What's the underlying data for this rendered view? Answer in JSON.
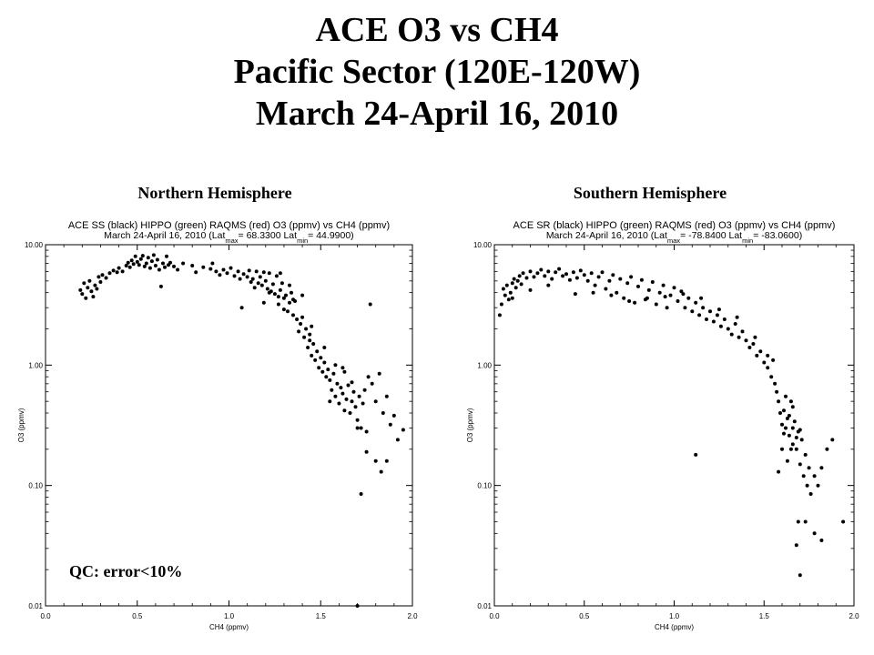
{
  "page": {
    "title_lines": [
      "ACE O3 vs CH4",
      "Pacific Sector (120E-120W)",
      "March 24-April 16, 2010"
    ],
    "qc_note": "QC: error<10%"
  },
  "chart_data": [
    {
      "type": "scatter",
      "panel_label": "Northern Hemisphere",
      "title": "ACE SS (black) HIPPO (green) RAQMS (red) O3 (ppmv) vs CH4 (ppmv)",
      "subtitle": {
        "prefix": "March 24-April 16, 2010 (Lat",
        "max_sub": "max",
        "eq1": "=",
        "lat_max": "68.3300",
        "mid": "Lat",
        "min_sub": "min",
        "eq2": "=",
        "lat_min": "44.9900",
        "close": ")"
      },
      "xlabel": "CH4 (ppmv)",
      "ylabel": "O3 (ppmv)",
      "xlim": [
        0.0,
        2.0
      ],
      "ylim": [
        0.01,
        10.0
      ],
      "yscale": "log",
      "x_ticks": [
        "0.0",
        "0.5",
        "1.0",
        "1.5",
        "2.0"
      ],
      "y_ticks": [
        "0.01",
        "0.10",
        "1.00",
        "10.00"
      ],
      "marker_color": "#000000",
      "points": [
        [
          0.19,
          4.2
        ],
        [
          0.2,
          3.9
        ],
        [
          0.21,
          4.8
        ],
        [
          0.22,
          3.6
        ],
        [
          0.23,
          4.4
        ],
        [
          0.24,
          5.0
        ],
        [
          0.25,
          4.1
        ],
        [
          0.26,
          3.7
        ],
        [
          0.27,
          4.6
        ],
        [
          0.28,
          4.3
        ],
        [
          0.29,
          5.4
        ],
        [
          0.3,
          4.9
        ],
        [
          0.31,
          5.6
        ],
        [
          0.33,
          5.3
        ],
        [
          0.35,
          5.8
        ],
        [
          0.37,
          6.1
        ],
        [
          0.39,
          5.9
        ],
        [
          0.4,
          6.4
        ],
        [
          0.42,
          6.0
        ],
        [
          0.44,
          6.7
        ],
        [
          0.45,
          7.1
        ],
        [
          0.46,
          6.5
        ],
        [
          0.47,
          7.4
        ],
        [
          0.48,
          6.9
        ],
        [
          0.49,
          8.0
        ],
        [
          0.5,
          7.2
        ],
        [
          0.51,
          6.8
        ],
        [
          0.52,
          7.6
        ],
        [
          0.53,
          8.1
        ],
        [
          0.54,
          6.6
        ],
        [
          0.55,
          7.0
        ],
        [
          0.56,
          7.8
        ],
        [
          0.57,
          6.4
        ],
        [
          0.58,
          7.3
        ],
        [
          0.59,
          8.2
        ],
        [
          0.6,
          6.7
        ],
        [
          0.61,
          7.5
        ],
        [
          0.62,
          6.2
        ],
        [
          0.63,
          4.5
        ],
        [
          0.64,
          7.0
        ],
        [
          0.65,
          6.5
        ],
        [
          0.66,
          8.0
        ],
        [
          0.67,
          6.8
        ],
        [
          0.68,
          7.1
        ],
        [
          0.7,
          6.6
        ],
        [
          0.72,
          6.2
        ],
        [
          0.75,
          7.0
        ],
        [
          0.8,
          6.7
        ],
        [
          0.82,
          5.9
        ],
        [
          0.86,
          6.5
        ],
        [
          0.9,
          6.3
        ],
        [
          0.91,
          7.0
        ],
        [
          0.93,
          6.0
        ],
        [
          0.95,
          5.6
        ],
        [
          0.97,
          6.2
        ],
        [
          0.99,
          5.8
        ],
        [
          1.01,
          6.4
        ],
        [
          1.03,
          5.5
        ],
        [
          1.05,
          6.0
        ],
        [
          1.06,
          5.2
        ],
        [
          1.07,
          3.0
        ],
        [
          1.08,
          5.7
        ],
        [
          1.1,
          5.4
        ],
        [
          1.11,
          6.1
        ],
        [
          1.12,
          4.9
        ],
        [
          1.13,
          5.2
        ],
        [
          1.14,
          4.4
        ],
        [
          1.15,
          6.0
        ],
        [
          1.16,
          4.8
        ],
        [
          1.17,
          5.4
        ],
        [
          1.18,
          4.6
        ],
        [
          1.19,
          3.3
        ],
        [
          1.2,
          5.0
        ],
        [
          1.21,
          4.3
        ],
        [
          1.22,
          5.8
        ],
        [
          1.23,
          4.1
        ],
        [
          1.24,
          4.7
        ],
        [
          1.25,
          3.9
        ],
        [
          1.26,
          5.5
        ],
        [
          1.27,
          3.7
        ],
        [
          1.28,
          4.2
        ],
        [
          1.29,
          4.8
        ],
        [
          1.3,
          3.6
        ],
        [
          1.31,
          3.8
        ],
        [
          1.32,
          2.8
        ],
        [
          1.33,
          3.3
        ],
        [
          1.34,
          4.0
        ],
        [
          1.35,
          2.6
        ],
        [
          1.36,
          3.4
        ],
        [
          1.37,
          2.4
        ],
        [
          1.38,
          1.9
        ],
        [
          1.39,
          2.2
        ],
        [
          1.4,
          2.5
        ],
        [
          1.41,
          1.7
        ],
        [
          1.42,
          2.0
        ],
        [
          1.43,
          1.4
        ],
        [
          1.44,
          1.6
        ],
        [
          1.45,
          1.2
        ],
        [
          1.46,
          1.5
        ],
        [
          1.47,
          1.1
        ],
        [
          1.48,
          1.3
        ],
        [
          1.49,
          0.95
        ],
        [
          1.5,
          1.15
        ],
        [
          1.51,
          0.88
        ],
        [
          1.52,
          1.05
        ],
        [
          1.53,
          0.8
        ],
        [
          1.54,
          0.92
        ],
        [
          1.55,
          0.75
        ],
        [
          1.56,
          0.62
        ],
        [
          1.57,
          0.85
        ],
        [
          1.58,
          0.55
        ],
        [
          1.59,
          0.7
        ],
        [
          1.6,
          0.48
        ],
        [
          1.61,
          0.65
        ],
        [
          1.62,
          0.58
        ],
        [
          1.63,
          0.42
        ],
        [
          1.64,
          0.52
        ],
        [
          1.65,
          0.68
        ],
        [
          1.66,
          0.4
        ],
        [
          1.67,
          0.5
        ],
        [
          1.68,
          0.6
        ],
        [
          1.69,
          0.45
        ],
        [
          1.7,
          0.35
        ],
        [
          1.71,
          0.55
        ],
        [
          1.72,
          0.3
        ],
        [
          1.73,
          0.48
        ],
        [
          1.74,
          0.62
        ],
        [
          1.75,
          0.28
        ],
        [
          1.76,
          0.8
        ],
        [
          1.78,
          0.7
        ],
        [
          1.8,
          0.5
        ],
        [
          1.82,
          0.85
        ],
        [
          1.84,
          0.4
        ],
        [
          1.86,
          0.55
        ],
        [
          1.88,
          0.32
        ],
        [
          1.63,
          0.88
        ],
        [
          1.7,
          0.3
        ],
        [
          1.72,
          0.085
        ],
        [
          1.75,
          0.19
        ],
        [
          1.8,
          0.16
        ],
        [
          1.83,
          0.13
        ],
        [
          1.86,
          0.16
        ],
        [
          1.9,
          0.38
        ],
        [
          1.92,
          0.24
        ],
        [
          1.95,
          0.29
        ],
        [
          1.7,
          0.01
        ],
        [
          1.77,
          3.2
        ],
        [
          1.35,
          3.5
        ],
        [
          1.3,
          2.9
        ],
        [
          1.28,
          5.8
        ],
        [
          1.4,
          3.8
        ],
        [
          1.45,
          2.1
        ],
        [
          1.55,
          0.5
        ],
        [
          1.58,
          1.0
        ],
        [
          1.62,
          0.95
        ],
        [
          1.67,
          0.72
        ],
        [
          1.52,
          1.4
        ],
        [
          1.44,
          1.8
        ],
        [
          1.27,
          3.2
        ],
        [
          1.33,
          4.6
        ],
        [
          1.22,
          4.0
        ],
        [
          1.19,
          5.9
        ]
      ]
    },
    {
      "type": "scatter",
      "panel_label": "Southern Hemisphere",
      "title": "ACE SR (black) HIPPO (green) RAQMS (red) O3 (ppmv) vs CH4 (ppmv)",
      "subtitle": {
        "prefix": "March 24-April 16, 2010 (Lat",
        "max_sub": "max",
        "eq1": "=",
        "lat_max": "-78.8400",
        "mid": "Lat",
        "min_sub": "min",
        "eq2": "=",
        "lat_min": "-83.0600",
        "close": ")"
      },
      "xlabel": "CH4 (ppmv)",
      "ylabel": "O3 (ppmv)",
      "xlim": [
        0.0,
        2.0
      ],
      "ylim": [
        0.01,
        10.0
      ],
      "yscale": "log",
      "x_ticks": [
        "0.0",
        "0.5",
        "1.0",
        "1.5",
        "2.0"
      ],
      "y_ticks": [
        "0.01",
        "0.10",
        "1.00",
        "10.00"
      ],
      "marker_color": "#000000",
      "points": [
        [
          0.04,
          3.2
        ],
        [
          0.05,
          4.3
        ],
        [
          0.06,
          3.8
        ],
        [
          0.07,
          4.6
        ],
        [
          0.08,
          3.5
        ],
        [
          0.09,
          4.0
        ],
        [
          0.1,
          4.8
        ],
        [
          0.11,
          5.2
        ],
        [
          0.12,
          4.4
        ],
        [
          0.13,
          5.0
        ],
        [
          0.14,
          5.5
        ],
        [
          0.15,
          4.7
        ],
        [
          0.16,
          5.8
        ],
        [
          0.18,
          5.3
        ],
        [
          0.2,
          6.0
        ],
        [
          0.22,
          5.4
        ],
        [
          0.24,
          5.8
        ],
        [
          0.26,
          6.2
        ],
        [
          0.28,
          5.5
        ],
        [
          0.3,
          6.0
        ],
        [
          0.32,
          5.2
        ],
        [
          0.34,
          5.9
        ],
        [
          0.36,
          6.3
        ],
        [
          0.38,
          5.5
        ],
        [
          0.4,
          5.7
        ],
        [
          0.42,
          5.1
        ],
        [
          0.44,
          5.9
        ],
        [
          0.46,
          5.3
        ],
        [
          0.48,
          6.1
        ],
        [
          0.5,
          5.6
        ],
        [
          0.52,
          5.0
        ],
        [
          0.54,
          5.8
        ],
        [
          0.56,
          4.6
        ],
        [
          0.58,
          5.4
        ],
        [
          0.6,
          5.9
        ],
        [
          0.62,
          4.3
        ],
        [
          0.64,
          5.0
        ],
        [
          0.66,
          5.6
        ],
        [
          0.68,
          4.0
        ],
        [
          0.7,
          5.2
        ],
        [
          0.72,
          3.6
        ],
        [
          0.74,
          4.8
        ],
        [
          0.76,
          5.4
        ],
        [
          0.78,
          3.3
        ],
        [
          0.8,
          4.5
        ],
        [
          0.82,
          5.1
        ],
        [
          0.84,
          3.5
        ],
        [
          0.86,
          4.2
        ],
        [
          0.88,
          4.9
        ],
        [
          0.9,
          3.2
        ],
        [
          0.92,
          4.0
        ],
        [
          0.94,
          4.6
        ],
        [
          0.96,
          3.0
        ],
        [
          0.98,
          3.8
        ],
        [
          1.0,
          4.4
        ],
        [
          1.02,
          3.4
        ],
        [
          1.04,
          4.1
        ],
        [
          1.06,
          3.0
        ],
        [
          1.08,
          3.6
        ],
        [
          1.1,
          2.8
        ],
        [
          1.12,
          3.3
        ],
        [
          1.14,
          2.6
        ],
        [
          1.16,
          3.0
        ],
        [
          1.18,
          2.4
        ],
        [
          1.2,
          2.8
        ],
        [
          1.22,
          2.3
        ],
        [
          1.24,
          2.6
        ],
        [
          1.26,
          2.1
        ],
        [
          1.28,
          2.4
        ],
        [
          1.3,
          2.0
        ],
        [
          1.32,
          1.8
        ],
        [
          1.34,
          2.2
        ],
        [
          1.36,
          1.7
        ],
        [
          1.38,
          1.9
        ],
        [
          1.4,
          1.6
        ],
        [
          1.42,
          1.4
        ],
        [
          1.44,
          1.5
        ],
        [
          1.46,
          1.2
        ],
        [
          1.48,
          1.3
        ],
        [
          1.5,
          1.05
        ],
        [
          1.52,
          0.95
        ],
        [
          1.54,
          0.8
        ],
        [
          1.55,
          1.1
        ],
        [
          1.56,
          0.7
        ],
        [
          1.57,
          0.6
        ],
        [
          1.58,
          0.5
        ],
        [
          1.59,
          0.4
        ],
        [
          1.6,
          0.32
        ],
        [
          1.61,
          0.42
        ],
        [
          1.62,
          0.3
        ],
        [
          1.63,
          0.36
        ],
        [
          1.64,
          0.26
        ],
        [
          1.65,
          0.5
        ],
        [
          1.66,
          0.22
        ],
        [
          1.67,
          0.34
        ],
        [
          1.68,
          0.2
        ],
        [
          1.69,
          0.28
        ],
        [
          1.7,
          0.15
        ],
        [
          1.71,
          0.24
        ],
        [
          1.72,
          0.12
        ],
        [
          1.73,
          0.18
        ],
        [
          1.74,
          0.1
        ],
        [
          1.75,
          0.14
        ],
        [
          1.76,
          0.085
        ],
        [
          1.78,
          0.12
        ],
        [
          1.8,
          0.1
        ],
        [
          1.82,
          0.14
        ],
        [
          1.85,
          0.2
        ],
        [
          1.88,
          0.24
        ],
        [
          1.62,
          0.55
        ],
        [
          1.66,
          0.45
        ],
        [
          1.69,
          0.05
        ],
        [
          1.68,
          0.032
        ],
        [
          1.7,
          0.018
        ],
        [
          1.73,
          0.05
        ],
        [
          1.78,
          0.04
        ],
        [
          1.82,
          0.035
        ],
        [
          1.94,
          0.05
        ],
        [
          1.12,
          0.18
        ],
        [
          1.58,
          0.13
        ],
        [
          1.6,
          0.2
        ],
        [
          1.63,
          0.16
        ],
        [
          0.03,
          2.6
        ],
        [
          0.1,
          3.6
        ],
        [
          0.2,
          4.2
        ],
        [
          0.3,
          4.6
        ],
        [
          0.45,
          3.9
        ],
        [
          0.55,
          4.0
        ],
        [
          0.65,
          3.8
        ],
        [
          0.75,
          3.4
        ],
        [
          0.85,
          3.6
        ],
        [
          0.95,
          3.7
        ],
        [
          1.05,
          3.9
        ],
        [
          1.15,
          3.6
        ],
        [
          1.25,
          2.9
        ],
        [
          1.35,
          2.5
        ],
        [
          1.45,
          1.7
        ],
        [
          1.52,
          1.2
        ],
        [
          1.64,
          0.38
        ],
        [
          1.66,
          0.3
        ],
        [
          1.68,
          0.25
        ],
        [
          1.61,
          0.27
        ],
        [
          1.65,
          0.2
        ],
        [
          1.7,
          0.29
        ]
      ]
    }
  ]
}
